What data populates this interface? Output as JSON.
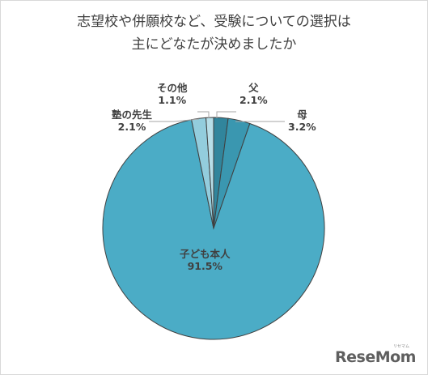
{
  "title": {
    "line1": "志望校や併願校など、受験についての選択は",
    "line2": "主にどなたが決めましたか"
  },
  "chart_data": {
    "type": "pie",
    "title": "志望校や併願校など、受験についての選択は主にどなたが決めましたか",
    "start_angle_deg": 0,
    "direction": "clockwise",
    "slices": [
      {
        "label": "父",
        "value": 2.1,
        "display": "2.1%",
        "color": "#31859c"
      },
      {
        "label": "母",
        "value": 3.2,
        "display": "3.2%",
        "color": "#3a97b0"
      },
      {
        "label": "子ども本人",
        "value": 91.5,
        "display": "91.5%",
        "color": "#4bacc6"
      },
      {
        "label": "塾の先生",
        "value": 2.1,
        "display": "2.1%",
        "color": "#93cddd"
      },
      {
        "label": "その他",
        "value": 1.1,
        "display": "1.1%",
        "color": "#b7dee8"
      }
    ],
    "slice_border_color": "#404040",
    "leader_line_color": "#a6a6a6"
  },
  "watermark": {
    "logo_text": "ReseMom",
    "logo_subtext": "リセマム"
  }
}
